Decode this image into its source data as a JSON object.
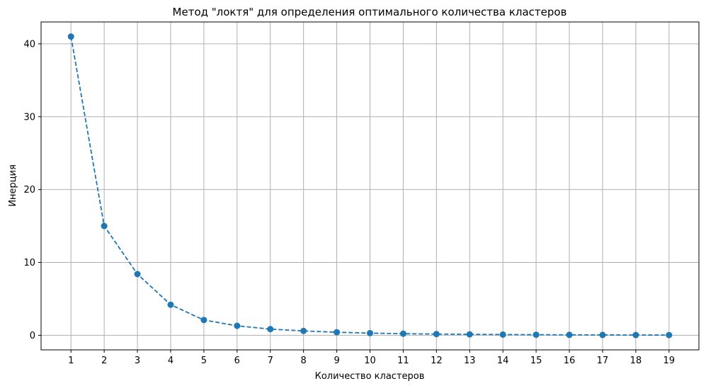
{
  "chart_data": {
    "type": "line",
    "title": "Метод \"локтя\" для определения оптимального количества кластеров",
    "xlabel": "Количество кластеров",
    "ylabel": "Инерция",
    "x": [
      1,
      2,
      3,
      4,
      5,
      6,
      7,
      8,
      9,
      10,
      11,
      12,
      13,
      14,
      15,
      16,
      17,
      18,
      19
    ],
    "y": [
      41.0,
      15.0,
      8.4,
      4.2,
      2.1,
      1.3,
      0.85,
      0.6,
      0.42,
      0.3,
      0.22,
      0.17,
      0.13,
      0.1,
      0.08,
      0.06,
      0.05,
      0.04,
      0.03
    ],
    "xticks": [
      "1",
      "2",
      "3",
      "4",
      "5",
      "6",
      "7",
      "8",
      "9",
      "10",
      "11",
      "12",
      "13",
      "14",
      "15",
      "16",
      "17",
      "18",
      "19"
    ],
    "yticks": [
      0,
      10,
      20,
      30,
      40
    ],
    "xlim": [
      0.1,
      19.9
    ],
    "ylim": [
      -2.0,
      43.0
    ],
    "grid": true,
    "line_style": "dashed",
    "marker": "circle",
    "line_color": "#1f77b4",
    "grid_color": "#b0b0b0"
  }
}
